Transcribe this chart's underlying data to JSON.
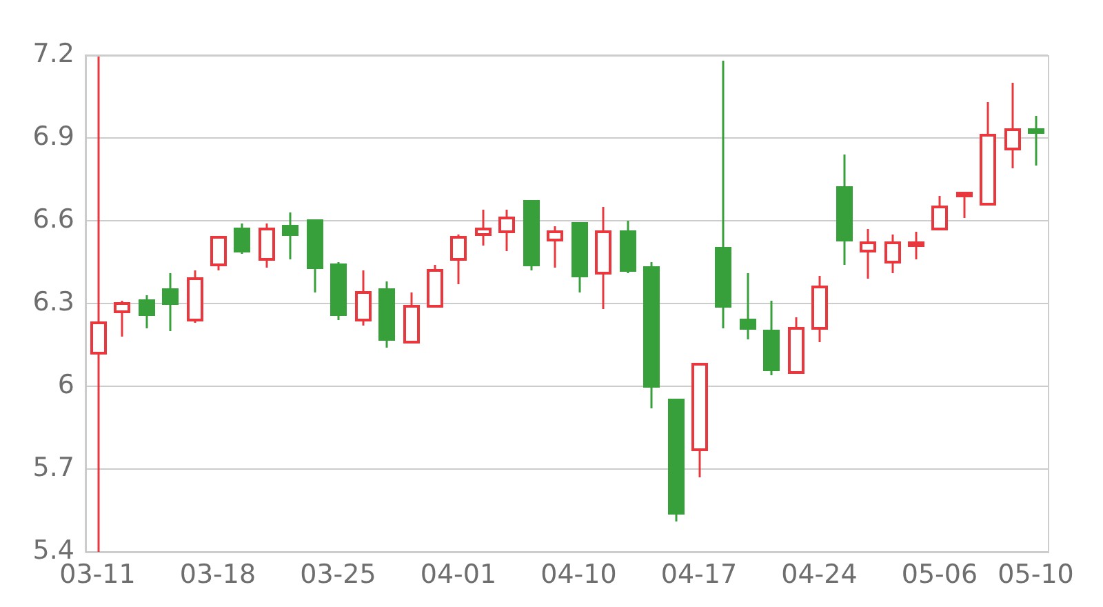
{
  "chart_data": {
    "type": "candlestick",
    "categories": [
      "03-11",
      null,
      null,
      null,
      null,
      "03-18",
      null,
      null,
      null,
      null,
      "03-25",
      null,
      null,
      null,
      null,
      "04-01",
      null,
      null,
      null,
      null,
      "04-10",
      null,
      null,
      null,
      null,
      "04-17",
      null,
      null,
      null,
      null,
      "04-24",
      null,
      null,
      null,
      null,
      "05-06",
      null,
      null,
      null,
      "05-10"
    ],
    "ohlc": [
      [
        6.12,
        7.2,
        5.4,
        6.23
      ],
      [
        6.27,
        6.31,
        6.18,
        6.3
      ],
      [
        6.31,
        6.33,
        6.21,
        6.26
      ],
      [
        6.35,
        6.41,
        6.2,
        6.3
      ],
      [
        6.24,
        6.42,
        6.23,
        6.39
      ],
      [
        6.44,
        6.54,
        6.42,
        6.54
      ],
      [
        6.57,
        6.59,
        6.48,
        6.49
      ],
      [
        6.46,
        6.59,
        6.43,
        6.57
      ],
      [
        6.58,
        6.63,
        6.46,
        6.55
      ],
      [
        6.6,
        6.6,
        6.34,
        6.43
      ],
      [
        6.44,
        6.45,
        6.24,
        6.26
      ],
      [
        6.24,
        6.42,
        6.22,
        6.34
      ],
      [
        6.35,
        6.38,
        6.14,
        6.17
      ],
      [
        6.16,
        6.34,
        6.16,
        6.29
      ],
      [
        6.29,
        6.44,
        6.29,
        6.42
      ],
      [
        6.46,
        6.55,
        6.37,
        6.54
      ],
      [
        6.55,
        6.64,
        6.51,
        6.57
      ],
      [
        6.56,
        6.64,
        6.49,
        6.61
      ],
      [
        6.67,
        6.67,
        6.42,
        6.44
      ],
      [
        6.53,
        6.58,
        6.43,
        6.56
      ],
      [
        6.59,
        6.59,
        6.34,
        6.4
      ],
      [
        6.41,
        6.65,
        6.28,
        6.56
      ],
      [
        6.56,
        6.6,
        6.41,
        6.42
      ],
      [
        6.43,
        6.45,
        5.92,
        6.0
      ],
      [
        5.95,
        5.95,
        5.51,
        5.54
      ],
      [
        5.77,
        6.08,
        5.67,
        6.08
      ],
      [
        6.5,
        7.18,
        6.21,
        6.29
      ],
      [
        6.24,
        6.41,
        6.17,
        6.21
      ],
      [
        6.2,
        6.31,
        6.04,
        6.06
      ],
      [
        6.05,
        6.25,
        6.05,
        6.21
      ],
      [
        6.21,
        6.4,
        6.16,
        6.36
      ],
      [
        6.72,
        6.84,
        6.44,
        6.53
      ],
      [
        6.49,
        6.57,
        6.39,
        6.52
      ],
      [
        6.45,
        6.55,
        6.41,
        6.52
      ],
      [
        6.51,
        6.56,
        6.46,
        6.52
      ],
      [
        6.57,
        6.69,
        6.57,
        6.65
      ],
      [
        6.69,
        6.7,
        6.61,
        6.7
      ],
      [
        6.66,
        7.03,
        6.66,
        6.91
      ],
      [
        6.86,
        7.1,
        6.79,
        6.93
      ],
      [
        6.93,
        6.98,
        6.8,
        6.92
      ]
    ],
    "colors": [
      "#e8383d",
      "#e8383d",
      "#37a03a",
      "#37a03a",
      "#e8383d",
      "#e8383d",
      "#37a03a",
      "#e8383d",
      "#37a03a",
      "#37a03a",
      "#37a03a",
      "#e8383d",
      "#37a03a",
      "#e8383d",
      "#e8383d",
      "#e8383d",
      "#e8383d",
      "#e8383d",
      "#37a03a",
      "#e8383d",
      "#37a03a",
      "#e8383d",
      "#37a03a",
      "#37a03a",
      "#37a03a",
      "#e8383d",
      "#37a03a",
      "#37a03a",
      "#37a03a",
      "#e8383d",
      "#e8383d",
      "#37a03a",
      "#e8383d",
      "#e8383d",
      "#e8383d",
      "#e8383d",
      "#e8383d",
      "#e8383d",
      "#e8383d",
      "#37a03a"
    ],
    "ylim": [
      5.4,
      7.2
    ],
    "yticks": [
      5.4,
      5.7,
      6,
      6.3,
      6.6,
      6.9,
      7.2
    ],
    "grid": "y"
  }
}
